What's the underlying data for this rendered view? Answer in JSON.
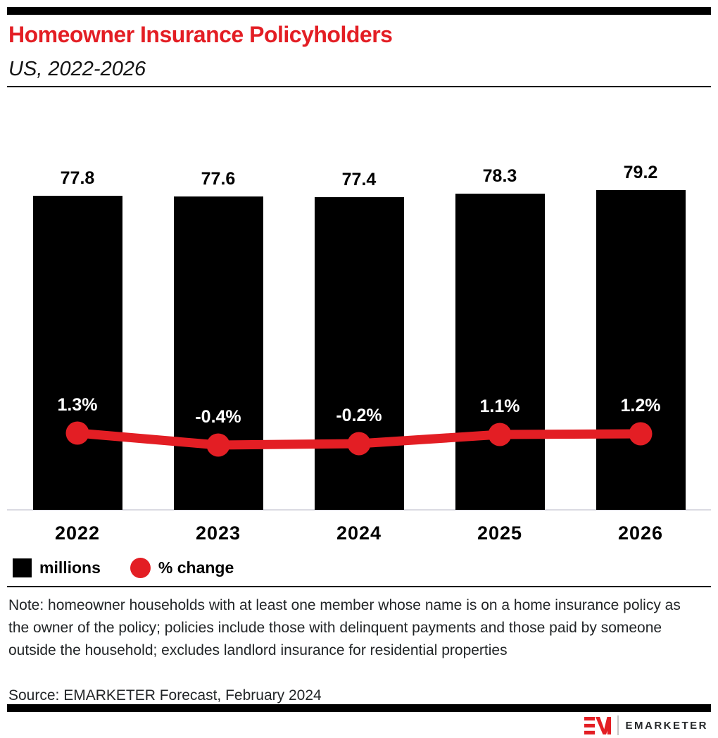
{
  "header": {
    "title": "Homeowner Insurance Policyholders",
    "subtitle": "US, 2022-2026"
  },
  "chart_data": {
    "type": "bar",
    "title": "Homeowner Insurance Policyholders",
    "subtitle": "US, 2022-2026",
    "categories": [
      "2022",
      "2023",
      "2024",
      "2025",
      "2026"
    ],
    "series": [
      {
        "name": "millions",
        "type": "bar",
        "values": [
          77.8,
          77.6,
          77.4,
          78.3,
          79.2
        ],
        "labels": [
          "77.8",
          "77.6",
          "77.4",
          "78.3",
          "79.2"
        ],
        "color": "#000000"
      },
      {
        "name": "% change",
        "type": "line",
        "values": [
          1.3,
          -0.4,
          -0.2,
          1.1,
          1.2
        ],
        "labels": [
          "1.3%",
          "-0.4%",
          "-0.2%",
          "1.1%",
          "1.2%"
        ],
        "color": "#e31e24"
      }
    ],
    "y_left": {
      "label": "millions",
      "min": 0
    },
    "y_right": {
      "label": "% change"
    },
    "grid": false,
    "legend_position": "bottom",
    "legend": [
      {
        "label": "millions",
        "swatch": "square",
        "color": "#000000"
      },
      {
        "label": "% change",
        "swatch": "circle",
        "color": "#e31e24"
      }
    ]
  },
  "notes": {
    "note": "Note: homeowner households with at least one member whose name is on a home insurance policy as the owner of the policy; policies include those with delinquent payments and those paid by someone outside the household; excludes landlord insurance for residential properties",
    "source": "Source: EMARKETER Forecast, February 2024"
  },
  "footer": {
    "brand": "EMARKETER"
  },
  "colors": {
    "accent_red": "#e31e24",
    "bar_black": "#000000",
    "axis_line": "#dadae2",
    "text": "#222527"
  }
}
